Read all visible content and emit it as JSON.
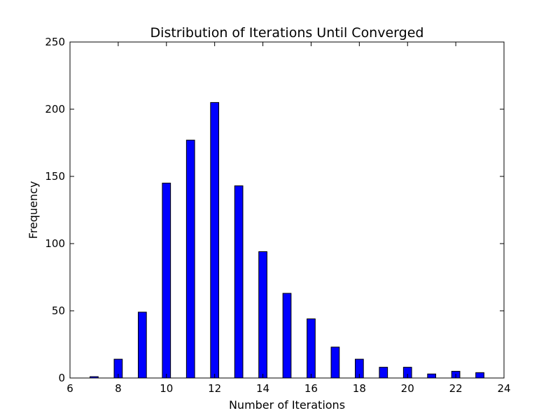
{
  "chart_data": {
    "type": "bar",
    "title": "Distribution of Iterations Until Converged",
    "xlabel": "Number of Iterations",
    "ylabel": "Frequency",
    "xlim": [
      6,
      24
    ],
    "ylim": [
      0,
      250
    ],
    "x_ticks": [
      6,
      8,
      10,
      12,
      14,
      16,
      18,
      20,
      22,
      24
    ],
    "y_ticks": [
      0,
      50,
      100,
      150,
      200,
      250
    ],
    "grid": false,
    "bar_color": "#0000ff",
    "edge_color": "#000000",
    "bars": [
      {
        "x": 7,
        "value": 1
      },
      {
        "x": 8,
        "value": 14
      },
      {
        "x": 9,
        "value": 49
      },
      {
        "x": 10,
        "value": 145
      },
      {
        "x": 11,
        "value": 177
      },
      {
        "x": 12,
        "value": 205
      },
      {
        "x": 13,
        "value": 143
      },
      {
        "x": 14,
        "value": 94
      },
      {
        "x": 15,
        "value": 63
      },
      {
        "x": 16,
        "value": 44
      },
      {
        "x": 17,
        "value": 23
      },
      {
        "x": 18,
        "value": 14
      },
      {
        "x": 19,
        "value": 8
      },
      {
        "x": 20,
        "value": 8
      },
      {
        "x": 21,
        "value": 3
      },
      {
        "x": 22,
        "value": 5
      },
      {
        "x": 23,
        "value": 4
      }
    ]
  }
}
